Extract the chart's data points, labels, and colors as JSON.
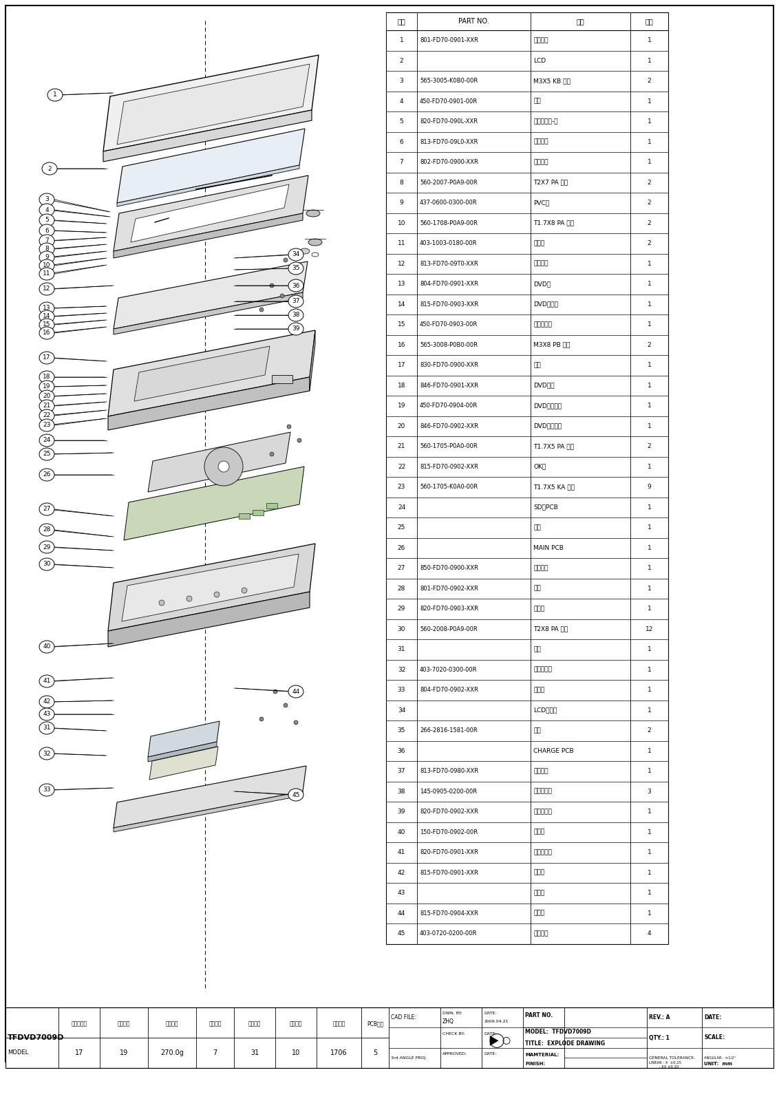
{
  "title": "TFDVD7009D",
  "model": "TFDVD7009D",
  "title_drawing": "EXPLODE DRAWING",
  "bg_color": "#ffffff",
  "table_header": [
    "序号",
    "PART NO.",
    "名称",
    "数量"
  ],
  "parts": [
    [
      "1",
      "801-FD70-0901-XXR",
      "显示底壳",
      "1"
    ],
    [
      "2",
      "",
      "LCD",
      "1"
    ],
    [
      "3",
      "565-3005-K0B0-00R",
      "M3X5 KB 螺丝",
      "2"
    ],
    [
      "4",
      "450-FD70-0901-00R",
      "转轴",
      "1"
    ],
    [
      "5",
      "820-FD70-090L-XXR",
      "充电指示镜-左",
      "1"
    ],
    [
      "6",
      "813-FD70-09L0-XXR",
      "左转轴盖",
      "1"
    ],
    [
      "7",
      "802-FD70-0900-XXR",
      "显示前壳",
      "1"
    ],
    [
      "8",
      "560-2007-P0A9-00R",
      "T2X7 PA 螺丝",
      "2"
    ],
    [
      "9",
      "437-0600-0300-00R",
      "PVC片",
      "2"
    ],
    [
      "10",
      "560-1708-P0A9-00R",
      "T1.7X8 PA 螺丝",
      "2"
    ],
    [
      "11",
      "403-1003-0180-00R",
      "橡胶垫",
      "2"
    ],
    [
      "12",
      "813-FD70-09T0-XXR",
      "上转轴盖",
      "1"
    ],
    [
      "13",
      "804-FD70-0901-XXR",
      "DVD门",
      "1"
    ],
    [
      "14",
      "815-FD70-0903-XXR",
      "DVD开门键",
      "1"
    ],
    [
      "15",
      "450-FD70-0903-00R",
      "开门钮弹簧",
      "1"
    ],
    [
      "16",
      "565-3008-P0B0-00R",
      "M3X8 PB 螺丝",
      "2"
    ],
    [
      "17",
      "830-FD70-0900-XXR",
      "中壳",
      "1"
    ],
    [
      "18",
      "846-FD70-0901-XXR",
      "DVD门扣",
      "1"
    ],
    [
      "19",
      "450-FD70-0904-00R",
      "DVD门扣弹簧",
      "1"
    ],
    [
      "20",
      "846-FD70-0902-XXR",
      "DVD门扣支架",
      "1"
    ],
    [
      "21",
      "560-1705-P0A0-00R",
      "T1.7X5 PA 螺丝",
      "2"
    ],
    [
      "22",
      "815-FD70-0902-XXR",
      "OK钮",
      "1"
    ],
    [
      "23",
      "560-1705-K0A0-00R",
      "T1.7X5 KA 螺丝",
      "9"
    ],
    [
      "24",
      "",
      "SD卡PCB",
      "1"
    ],
    [
      "25",
      "",
      "机芯",
      "1"
    ],
    [
      "26",
      "",
      "MAIN PCB",
      "1"
    ],
    [
      "27",
      "850-FD70-0900-XXR",
      "装饰围框",
      "1"
    ],
    [
      "28",
      "801-FD70-0902-XXR",
      "底壳",
      "1"
    ],
    [
      "29",
      "820-FD70-0903-XXR",
      "遥控镜",
      "1"
    ],
    [
      "30",
      "560-2008-P0A9-00R",
      "T2X8 PA 螺丝",
      "12"
    ],
    [
      "31",
      "",
      "电池",
      "1"
    ],
    [
      "32",
      "403-7020-0300-00R",
      "电池盖泡绵",
      "1"
    ],
    [
      "33",
      "804-FD70-0902-XXR",
      "电池门",
      "1"
    ],
    [
      "34",
      "",
      "LCD转接板",
      "1"
    ],
    [
      "35",
      "266-2816-1581-00R",
      "喇叭",
      "2"
    ],
    [
      "36",
      "",
      "CHARGE PCB",
      "1"
    ],
    [
      "37",
      "813-FD70-0980-XXR",
      "右转轴盖",
      "1"
    ],
    [
      "38",
      "145-0905-0200-00R",
      "圆形双面胶",
      "3"
    ],
    [
      "39",
      "820-FD70-0902-XXR",
      "充电指示镜",
      "1"
    ],
    [
      "40",
      "150-FD70-0902-00R",
      "打弹弓",
      "1"
    ],
    [
      "41",
      "820-FD70-0901-XXR",
      "充电指示镜",
      "1"
    ],
    [
      "42",
      "815-FD70-0901-XXR",
      "功能钮",
      "1"
    ],
    [
      "43",
      "",
      "按键板",
      "1"
    ],
    [
      "44",
      "815-FD70-0904-XXR",
      "电源钮",
      "1"
    ],
    [
      "45",
      "403-0720-0200-00R",
      "橡胶脚垫",
      "4"
    ]
  ],
  "footer_left_cols": [
    "外购件数量",
    "胶件数量",
    "胶件总重",
    "螺丝种类",
    "螺丝数量",
    "模具套数",
    "机器单位",
    "PCB数量"
  ],
  "footer_values": [
    "17",
    "19",
    "270.0g",
    "7",
    "31",
    "10",
    "1706",
    "5"
  ],
  "model_label": "TFDVD7009D",
  "dwn_by": "ZHQ",
  "date": "2009.04.21",
  "rev": "A"
}
